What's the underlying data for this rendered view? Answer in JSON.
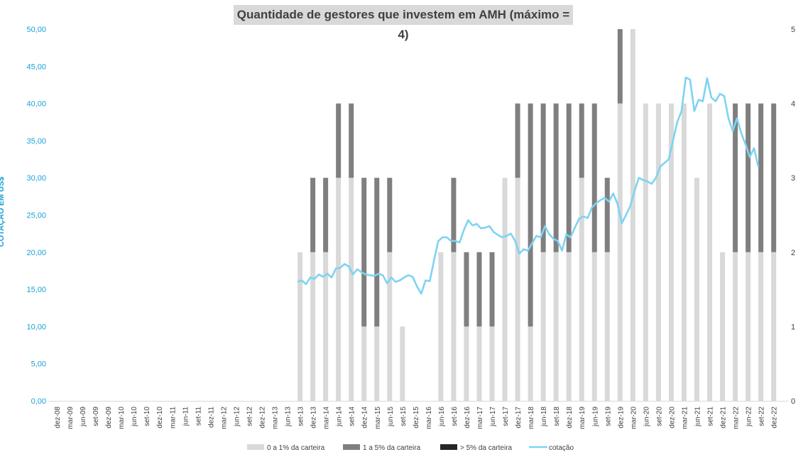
{
  "chart_data": {
    "type": "bar",
    "title": "Quantidade de gestores que investem em AMH (máximo = 4)",
    "ylabel": "COTAÇÃO EM US$",
    "y2label": "",
    "ylim": [
      0,
      50
    ],
    "y2lim": [
      0,
      5
    ],
    "yticks": [
      "0,00",
      "5,00",
      "10,00",
      "15,00",
      "20,00",
      "25,00",
      "30,00",
      "35,00",
      "40,00",
      "45,00",
      "50,00"
    ],
    "y2ticks": [
      "0",
      "1",
      "2",
      "3",
      "4",
      "5"
    ],
    "x_tick_labels": [
      "dez-08",
      "mar-09",
      "jun-09",
      "set-09",
      "dez-09",
      "mar-10",
      "jun-10",
      "set-10",
      "dez-10",
      "mar-11",
      "jun-11",
      "set-11",
      "dez-11",
      "mar-12",
      "jun-12",
      "set-12",
      "dez-12",
      "mar-13",
      "jun-13",
      "set-13",
      "dez-13",
      "mar-14",
      "jun-14",
      "set-14",
      "dez-14",
      "mar-15",
      "jun-15",
      "set-15",
      "dez-15",
      "mar-16",
      "jun-16",
      "set-16",
      "dez-16",
      "mar-17",
      "jun-17",
      "set-17",
      "dez-17",
      "mar-18",
      "jun-18",
      "set-18",
      "dez-18",
      "mar-19",
      "jun-19",
      "set-19",
      "dez-19",
      "mar-20",
      "jun-20",
      "set-20",
      "dez-20",
      "mar-21",
      "jun-21",
      "set-21",
      "dez-21",
      "mar-22",
      "jun-22",
      "set-22",
      "dez-22"
    ],
    "grid": false,
    "legend_position": "bottom",
    "series": [
      {
        "name": "0 a 1% da carteira",
        "axis": "right",
        "color": "#d9d9d9",
        "values": [
          0,
          0,
          0,
          0,
          0,
          0,
          0,
          0,
          0,
          0,
          0,
          0,
          0,
          0,
          0,
          0,
          0,
          0,
          0,
          2,
          2,
          2,
          3,
          3,
          1,
          1,
          2,
          1,
          0,
          0,
          2,
          2,
          1,
          1,
          1,
          3,
          3,
          1,
          2,
          2,
          2,
          3,
          2,
          2,
          4,
          5,
          4,
          4,
          4,
          4,
          3,
          4,
          2,
          2,
          2,
          2,
          2
        ]
      },
      {
        "name": "1 a 5% da carteira",
        "axis": "right",
        "color": "#7f7f7f",
        "values": [
          0,
          0,
          0,
          0,
          0,
          0,
          0,
          0,
          0,
          0,
          0,
          0,
          0,
          0,
          0,
          0,
          0,
          0,
          0,
          0,
          1,
          1,
          1,
          1,
          2,
          2,
          1,
          0,
          0,
          0,
          0,
          1,
          1,
          1,
          1,
          0,
          1,
          3,
          2,
          2,
          2,
          1,
          2,
          1,
          1,
          0,
          0,
          0,
          0,
          0,
          0,
          0,
          0,
          2,
          2,
          2,
          2
        ]
      },
      {
        "name": "> 5% da carteira",
        "axis": "right",
        "color": "#262626",
        "values": [
          0,
          0,
          0,
          0,
          0,
          0,
          0,
          0,
          0,
          0,
          0,
          0,
          0,
          0,
          0,
          0,
          0,
          0,
          0,
          0,
          0,
          0,
          0,
          0,
          0,
          0,
          0,
          0,
          0,
          0,
          0,
          0,
          0,
          0,
          0,
          0,
          0,
          0,
          0,
          0,
          0,
          0,
          0,
          0,
          0,
          0,
          0,
          0,
          0,
          0,
          0,
          0,
          0,
          0,
          0,
          0,
          0
        ]
      },
      {
        "name": "cotação",
        "type": "line",
        "axis": "left",
        "color": "#7fd3f2",
        "start_index": 18.8,
        "points_per_quarter": 3,
        "values": [
          16.0,
          16.2,
          15.7,
          16.6,
          16.4,
          17.0,
          16.7,
          17.1,
          16.6,
          17.8,
          17.9,
          18.4,
          18.1,
          17.0,
          17.7,
          17.3,
          17.0,
          16.9,
          16.8,
          17.1,
          16.9,
          15.8,
          16.6,
          16.0,
          16.2,
          16.6,
          16.9,
          16.7,
          15.4,
          14.4,
          16.2,
          16.1,
          18.9,
          21.5,
          22.0,
          22.0,
          21.5,
          21.5,
          21.3,
          23.0,
          24.3,
          23.6,
          23.8,
          23.2,
          23.3,
          23.5,
          22.7,
          22.3,
          22.0,
          22.2,
          22.5,
          21.5,
          19.8,
          20.4,
          20.2,
          21.2,
          22.2,
          22.0,
          23.5,
          22.4,
          21.8,
          21.5,
          20.2,
          22.4,
          22.0,
          23.3,
          24.5,
          24.8,
          24.6,
          26.0,
          26.6,
          27.0,
          27.3,
          26.8,
          27.9,
          26.5,
          23.9,
          25.0,
          26.2,
          28.3,
          30.0,
          29.7,
          29.5,
          29.2,
          30.0,
          31.5,
          32.0,
          32.5,
          35.0,
          37.5,
          39.0,
          43.5,
          43.2,
          39.0,
          40.5,
          40.3,
          43.4,
          40.8,
          40.3,
          41.3,
          41.0,
          38.0,
          36.3,
          38.0,
          36.0,
          34.5,
          32.8,
          34.0,
          31.5
        ]
      }
    ]
  }
}
